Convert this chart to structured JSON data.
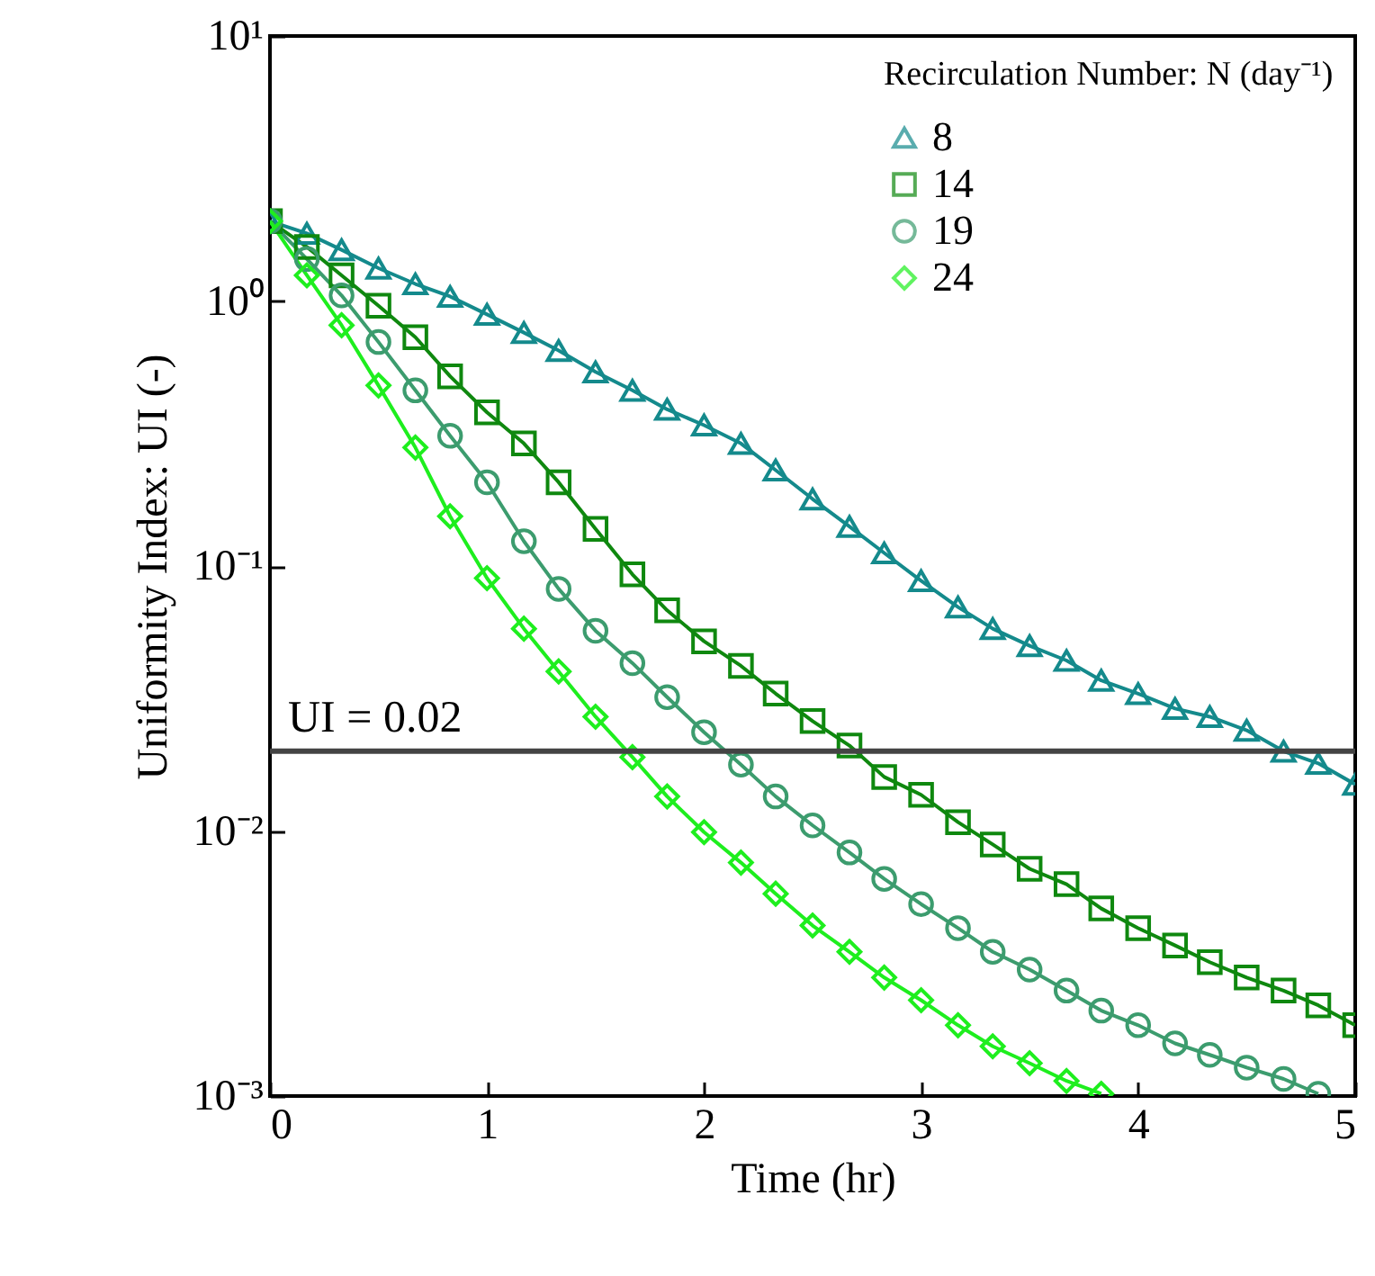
{
  "chart_data": {
    "type": "line",
    "xlabel": "Time  (hr)",
    "ylabel": "Uniformity Index: UI (-)",
    "legend_title": "Recirculation Number: N (day⁻¹)",
    "x": [
      0,
      0.17,
      0.33,
      0.5,
      0.67,
      0.83,
      1,
      1.17,
      1.33,
      1.5,
      1.67,
      1.83,
      2,
      2.17,
      2.33,
      2.5,
      2.67,
      2.83,
      3,
      3.17,
      3.33,
      3.5,
      3.67,
      3.83,
      4,
      4.17,
      4.33,
      4.5,
      4.67,
      4.83,
      5
    ],
    "series": [
      {
        "name": "8",
        "color": "#148a8c",
        "marker": "triangle",
        "values": [
          2,
          1.8,
          1.56,
          1.33,
          1.16,
          1.04,
          0.89,
          0.76,
          0.65,
          0.54,
          0.46,
          0.39,
          0.34,
          0.29,
          0.23,
          0.179,
          0.141,
          0.112,
          0.088,
          0.07,
          0.058,
          0.05,
          0.044,
          0.037,
          0.033,
          0.029,
          0.027,
          0.024,
          0.02,
          0.018,
          0.015
        ]
      },
      {
        "name": "14",
        "color": "#0f880f",
        "marker": "square",
        "values": [
          2,
          1.6,
          1.25,
          0.96,
          0.73,
          0.52,
          0.38,
          0.29,
          0.207,
          0.138,
          0.093,
          0.068,
          0.052,
          0.042,
          0.033,
          0.026,
          0.021,
          0.016,
          0.0137,
          0.0108,
          0.0089,
          0.0072,
          0.0063,
          0.0051,
          0.0043,
          0.0037,
          0.0032,
          0.0028,
          0.0025,
          0.0022,
          0.00185
        ]
      },
      {
        "name": "19",
        "color": "#3c9c6e",
        "marker": "circle",
        "x": [
          0,
          0.17,
          0.33,
          0.5,
          0.67,
          0.83,
          1,
          1.17,
          1.33,
          1.5,
          1.67,
          1.83,
          2,
          2.17,
          2.33,
          2.5,
          2.67,
          2.83,
          3,
          3.17,
          3.33,
          3.5,
          3.67,
          3.83,
          4,
          4.17,
          4.33,
          4.5,
          4.67,
          4.83
        ],
        "values": [
          2,
          1.44,
          1.05,
          0.7,
          0.46,
          0.31,
          0.207,
          0.124,
          0.082,
          0.057,
          0.043,
          0.032,
          0.0236,
          0.0178,
          0.0135,
          0.0105,
          0.0083,
          0.0066,
          0.0053,
          0.0043,
          0.0035,
          0.003,
          0.0025,
          0.0021,
          0.00185,
          0.00158,
          0.00143,
          0.00128,
          0.00116,
          0.00102
        ]
      },
      {
        "name": "24",
        "color": "#1eee1e",
        "marker": "diamond",
        "x": [
          0,
          0.17,
          0.33,
          0.5,
          0.67,
          0.83,
          1,
          1.17,
          1.33,
          1.5,
          1.67,
          1.83,
          2,
          2.17,
          2.33,
          2.5,
          2.67,
          2.83,
          3,
          3.17,
          3.33,
          3.5,
          3.67,
          3.83
        ],
        "values": [
          2,
          1.25,
          0.81,
          0.48,
          0.28,
          0.154,
          0.09,
          0.058,
          0.04,
          0.027,
          0.019,
          0.0135,
          0.0099,
          0.0076,
          0.0058,
          0.0044,
          0.0035,
          0.0028,
          0.0023,
          0.00185,
          0.00154,
          0.00133,
          0.00114,
          0.00102
        ]
      }
    ],
    "log": "y",
    "xlim": [
      0,
      5
    ],
    "xticks": [
      0,
      1,
      2,
      3,
      4,
      5
    ],
    "ylim": [
      0.001,
      10
    ],
    "yticks": [
      {
        "value": 0.001,
        "label": "10⁻³"
      },
      {
        "value": 0.01,
        "label": "10⁻²"
      },
      {
        "value": 0.1,
        "label": "10⁻¹"
      },
      {
        "value": 1,
        "label": "10⁰"
      },
      {
        "value": 10,
        "label": "10¹"
      }
    ],
    "ref_lines": [
      {
        "axis": "y",
        "value": 0.02,
        "label": "UI = 0.02",
        "color": "#444444"
      }
    ],
    "legend": "top right",
    "line_style": "solid"
  }
}
